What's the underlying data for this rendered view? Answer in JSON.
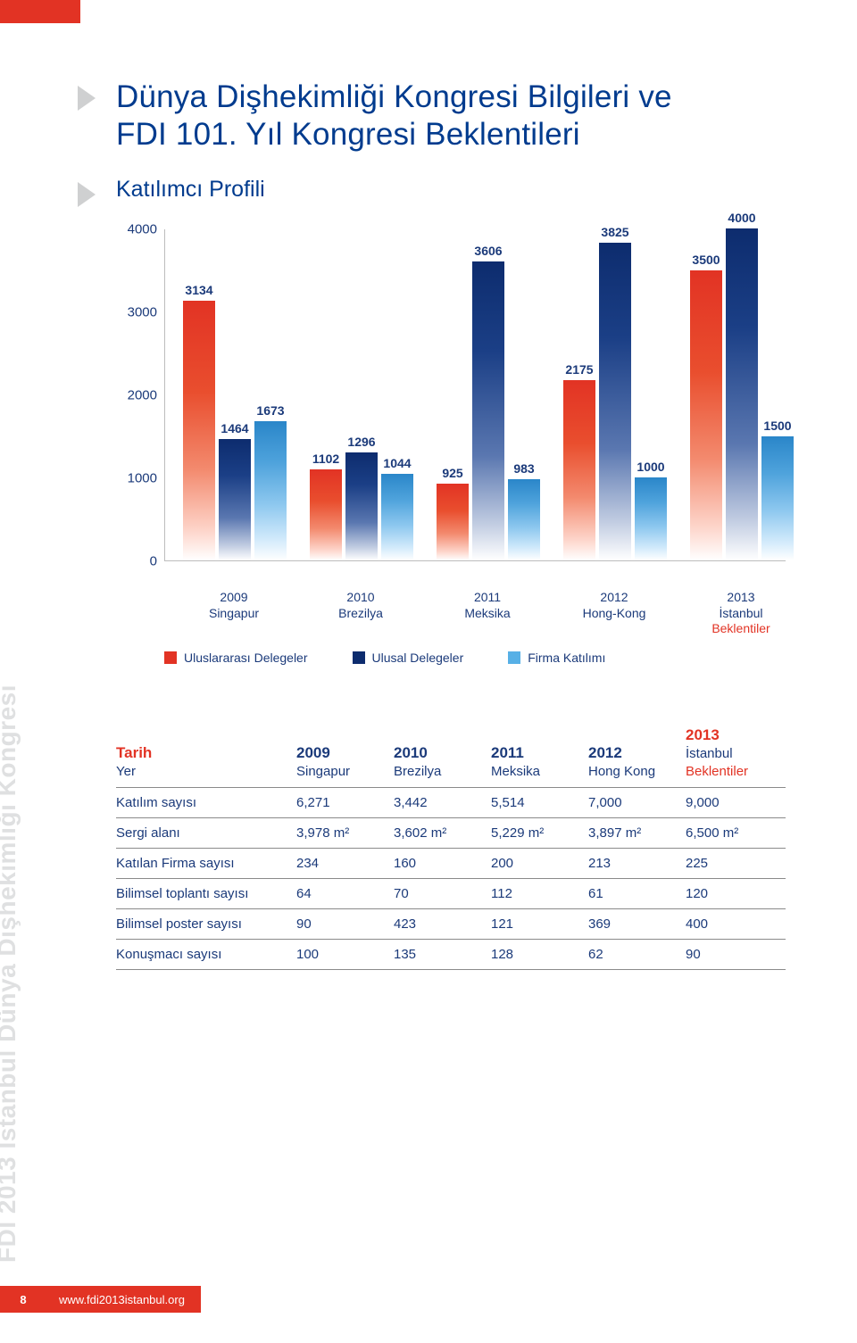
{
  "header": {
    "title_line1": "Dünya Dişhekimliği Kongresi Bilgileri ve",
    "title_line2": "FDI 101. Yıl Kongresi Beklentileri",
    "subtitle": "Katılımcı Profili"
  },
  "chart": {
    "type": "bar",
    "ylim": [
      0,
      4000
    ],
    "ytick_step": 1000,
    "yticks": [
      "0",
      "1000",
      "2000",
      "3000",
      "4000"
    ],
    "colors": {
      "series1": "#e23324",
      "series2": "#0d2c6e",
      "series3": "#57b0e6"
    },
    "groups": [
      {
        "year": "2009",
        "place": "Singapur",
        "red_note": "",
        "values": [
          3134,
          1464,
          1673
        ]
      },
      {
        "year": "2010",
        "place": "Brezilya",
        "red_note": "",
        "values": [
          1102,
          1296,
          1044
        ]
      },
      {
        "year": "2011",
        "place": "Meksika",
        "red_note": "",
        "values": [
          925,
          3606,
          983
        ]
      },
      {
        "year": "2012",
        "place": "Hong-Kong",
        "red_note": "",
        "values": [
          2175,
          3825,
          1000
        ]
      },
      {
        "year": "2013",
        "place": "İstanbul",
        "red_note": "Beklentiler",
        "values": [
          3500,
          4000,
          1500
        ]
      }
    ],
    "legend": {
      "s1": "Uluslararası Delegeler",
      "s2": "Ulusal Delegeler",
      "s3": "Firma Katılımı"
    }
  },
  "table": {
    "header_labels": {
      "tarih": "Tarih",
      "yer": "Yer"
    },
    "columns": [
      {
        "year": "2009",
        "place": "Singapur",
        "note": ""
      },
      {
        "year": "2010",
        "place": "Brezilya",
        "note": ""
      },
      {
        "year": "2011",
        "place": "Meksika",
        "note": ""
      },
      {
        "year": "2012",
        "place": "Hong Kong",
        "note": ""
      },
      {
        "year": "2013",
        "place": "İstanbul",
        "note": "Beklentiler"
      }
    ],
    "rows": [
      {
        "label": "Katılım sayısı",
        "cells": [
          "6,271",
          "3,442",
          "5,514",
          "7,000",
          "9,000"
        ]
      },
      {
        "label": "Sergi alanı",
        "cells": [
          "3,978 m²",
          "3,602 m²",
          "5,229 m²",
          "3,897 m²",
          "6,500 m²"
        ]
      },
      {
        "label": "Katılan Firma sayısı",
        "cells": [
          "234",
          "160",
          "200",
          "213",
          "225"
        ]
      },
      {
        "label": "Bilimsel toplantı sayısı",
        "cells": [
          "64",
          "70",
          "112",
          "61",
          "120"
        ]
      },
      {
        "label": "Bilimsel poster sayısı",
        "cells": [
          "90",
          "423",
          "121",
          "369",
          "400"
        ]
      },
      {
        "label": "Konuşmacı sayısı",
        "cells": [
          "100",
          "135",
          "128",
          "62",
          "90"
        ]
      }
    ]
  },
  "sidebar_text": "FDI 2013 İstanbul Dünya Dişhekimliği Kongresi",
  "footer": {
    "page": "8",
    "url": "www.fdi2013istanbul.org"
  }
}
